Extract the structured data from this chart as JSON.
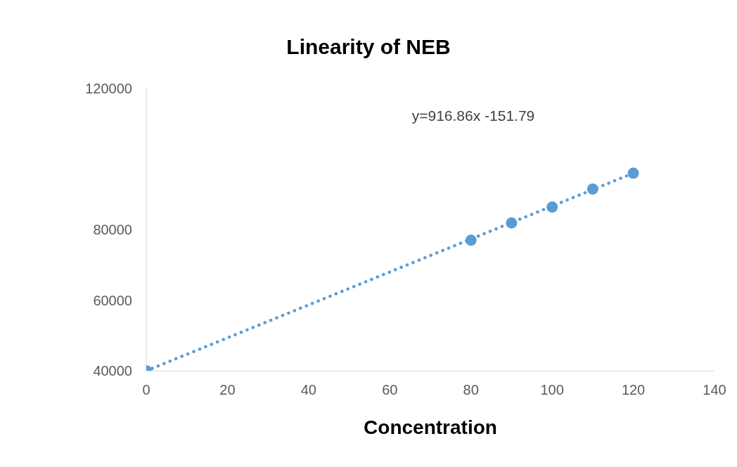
{
  "chart_data": {
    "type": "scatter",
    "title": "Linearity of NEB",
    "xlabel": "Concentration",
    "x": [
      0,
      80,
      90,
      100,
      110,
      120
    ],
    "series": [
      {
        "color": "#5b9bd5",
        "values": [
          40000,
          77000,
          81900,
          86400,
          91500,
          96000
        ]
      },
      {
        "type": "line",
        "color": "#5b9bd5",
        "x": [
          0,
          120
        ],
        "values": [
          40000,
          96000
        ],
        "line_style": "dotted",
        "marker": "none"
      }
    ],
    "marker": "circle",
    "xlim": [
      0,
      140
    ],
    "xticks": [
      0,
      20,
      40,
      60,
      80,
      100,
      120,
      140
    ],
    "ylim": [
      40000,
      120000
    ],
    "yticks": [
      40000,
      60000,
      80000,
      120000
    ],
    "grid": false,
    "legend": false,
    "annotations": [
      "y=916.86x -151.79"
    ]
  }
}
